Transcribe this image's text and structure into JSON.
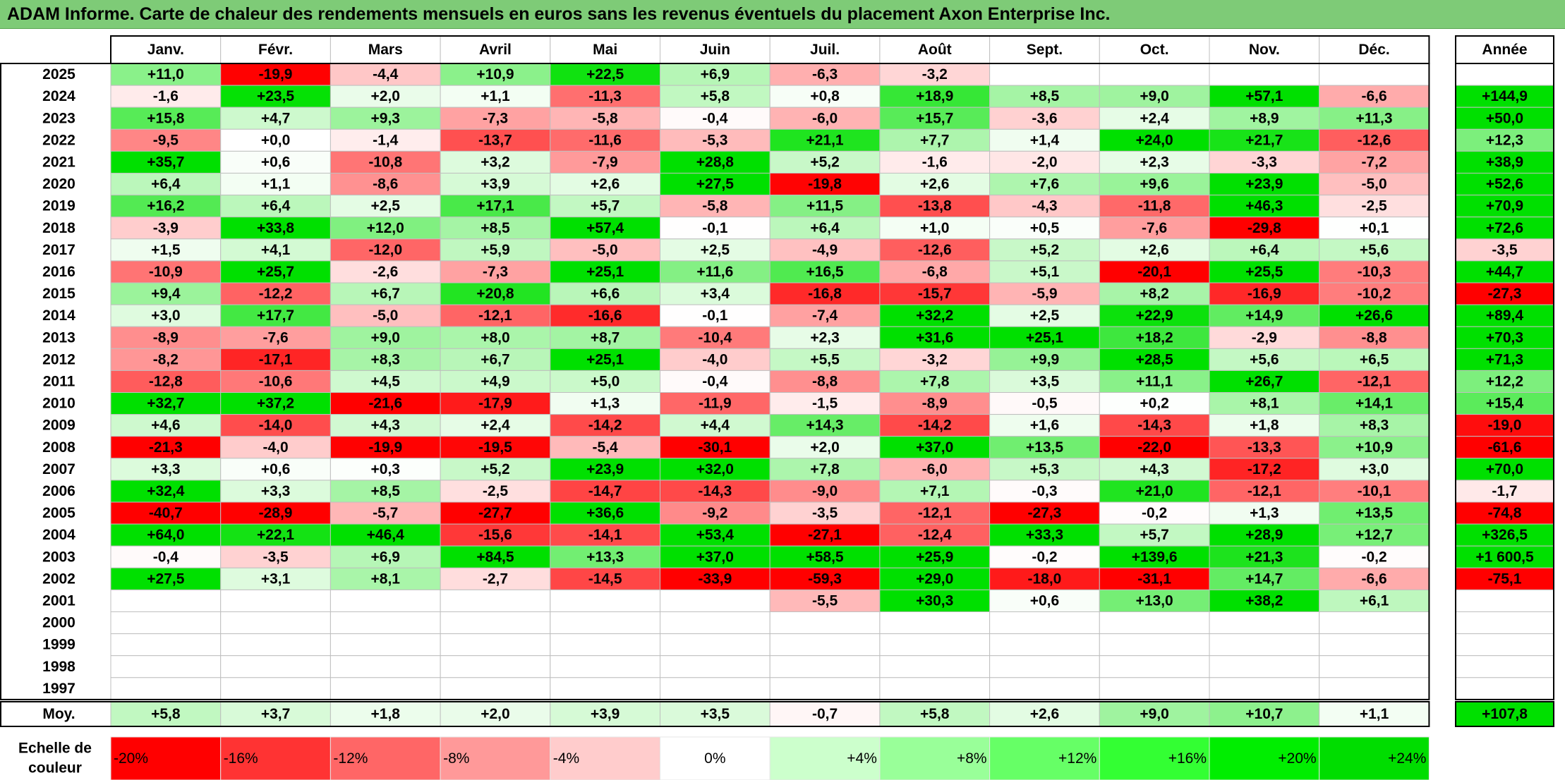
{
  "title": "ADAM Informe. Carte de chaleur des rendements mensuels en euros sans les revenus éventuels du placement Axon Enterprise Inc.",
  "chart_data": {
    "type": "heatmap",
    "title": "ADAM Informe. Carte de chaleur des rendements mensuels en euros sans les revenus éventuels du placement Axon Enterprise Inc.",
    "months": [
      "Janv.",
      "Févr.",
      "Mars",
      "Avril",
      "Mai",
      "Juin",
      "Juil.",
      "Août",
      "Sept.",
      "Oct.",
      "Nov.",
      "Déc."
    ],
    "year_column_label": "Année",
    "rows": [
      {
        "year": "2025",
        "values": [
          11.0,
          -19.9,
          -4.4,
          10.9,
          22.5,
          6.9,
          -6.3,
          -3.2,
          null,
          null,
          null,
          null
        ],
        "labels": [
          "+11,0",
          "-19,9",
          "-4,4",
          "+10,9",
          "+22,5",
          "+6,9",
          "-6,3",
          "-3,2",
          "",
          "",
          "",
          ""
        ],
        "annual": null,
        "annual_label": ""
      },
      {
        "year": "2024",
        "values": [
          -1.6,
          23.5,
          2.0,
          1.1,
          -11.3,
          5.8,
          0.8,
          18.9,
          8.5,
          9.0,
          57.1,
          -6.6
        ],
        "labels": [
          "-1,6",
          "+23,5",
          "+2,0",
          "+1,1",
          "-11,3",
          "+5,8",
          "+0,8",
          "+18,9",
          "+8,5",
          "+9,0",
          "+57,1",
          "-6,6"
        ],
        "annual": 144.9,
        "annual_label": "+144,9"
      },
      {
        "year": "2023",
        "values": [
          15.8,
          4.7,
          9.3,
          -7.3,
          -5.8,
          -0.4,
          -6.0,
          15.7,
          -3.6,
          2.4,
          8.9,
          11.3
        ],
        "labels": [
          "+15,8",
          "+4,7",
          "+9,3",
          "-7,3",
          "-5,8",
          "-0,4",
          "-6,0",
          "+15,7",
          "-3,6",
          "+2,4",
          "+8,9",
          "+11,3"
        ],
        "annual": 50.0,
        "annual_label": "+50,0"
      },
      {
        "year": "2022",
        "values": [
          -9.5,
          0.0,
          -1.4,
          -13.7,
          -11.6,
          -5.3,
          21.1,
          7.7,
          1.4,
          24.0,
          21.7,
          -12.6
        ],
        "labels": [
          "-9,5",
          "+0,0",
          "-1,4",
          "-13,7",
          "-11,6",
          "-5,3",
          "+21,1",
          "+7,7",
          "+1,4",
          "+24,0",
          "+21,7",
          "-12,6"
        ],
        "annual": 12.3,
        "annual_label": "+12,3"
      },
      {
        "year": "2021",
        "values": [
          35.7,
          0.6,
          -10.8,
          3.2,
          -7.9,
          28.8,
          5.2,
          -1.6,
          -2.0,
          2.3,
          -3.3,
          -7.2
        ],
        "labels": [
          "+35,7",
          "+0,6",
          "-10,8",
          "+3,2",
          "-7,9",
          "+28,8",
          "+5,2",
          "-1,6",
          "-2,0",
          "+2,3",
          "-3,3",
          "-7,2"
        ],
        "annual": 38.9,
        "annual_label": "+38,9"
      },
      {
        "year": "2020",
        "values": [
          6.4,
          1.1,
          -8.6,
          3.9,
          2.6,
          27.5,
          -19.8,
          2.6,
          7.6,
          9.6,
          23.9,
          -5.0
        ],
        "labels": [
          "+6,4",
          "+1,1",
          "-8,6",
          "+3,9",
          "+2,6",
          "+27,5",
          "-19,8",
          "+2,6",
          "+7,6",
          "+9,6",
          "+23,9",
          "-5,0"
        ],
        "annual": 52.6,
        "annual_label": "+52,6"
      },
      {
        "year": "2019",
        "values": [
          16.2,
          6.4,
          2.5,
          17.1,
          5.7,
          -5.8,
          11.5,
          -13.8,
          -4.3,
          -11.8,
          46.3,
          -2.5
        ],
        "labels": [
          "+16,2",
          "+6,4",
          "+2,5",
          "+17,1",
          "+5,7",
          "-5,8",
          "+11,5",
          "-13,8",
          "-4,3",
          "-11,8",
          "+46,3",
          "-2,5"
        ],
        "annual": 70.9,
        "annual_label": "+70,9"
      },
      {
        "year": "2018",
        "values": [
          -3.9,
          33.8,
          12.0,
          8.5,
          57.4,
          -0.1,
          6.4,
          1.0,
          0.5,
          -7.6,
          -29.8,
          0.1
        ],
        "labels": [
          "-3,9",
          "+33,8",
          "+12,0",
          "+8,5",
          "+57,4",
          "-0,1",
          "+6,4",
          "+1,0",
          "+0,5",
          "-7,6",
          "-29,8",
          "+0,1"
        ],
        "annual": 72.6,
        "annual_label": "+72,6"
      },
      {
        "year": "2017",
        "values": [
          1.5,
          4.1,
          -12.0,
          5.9,
          -5.0,
          2.5,
          -4.9,
          -12.6,
          5.2,
          2.6,
          6.4,
          5.6
        ],
        "labels": [
          "+1,5",
          "+4,1",
          "-12,0",
          "+5,9",
          "-5,0",
          "+2,5",
          "-4,9",
          "-12,6",
          "+5,2",
          "+2,6",
          "+6,4",
          "+5,6"
        ],
        "annual": -3.5,
        "annual_label": "-3,5"
      },
      {
        "year": "2016",
        "values": [
          -10.9,
          25.7,
          -2.6,
          -7.3,
          25.1,
          11.6,
          16.5,
          -6.8,
          5.1,
          -20.1,
          25.5,
          -10.3
        ],
        "labels": [
          "-10,9",
          "+25,7",
          "-2,6",
          "-7,3",
          "+25,1",
          "+11,6",
          "+16,5",
          "-6,8",
          "+5,1",
          "-20,1",
          "+25,5",
          "-10,3"
        ],
        "annual": 44.7,
        "annual_label": "+44,7"
      },
      {
        "year": "2015",
        "values": [
          9.4,
          -12.2,
          6.7,
          20.8,
          6.6,
          3.4,
          -16.8,
          -15.7,
          -5.9,
          8.2,
          -16.9,
          -10.2
        ],
        "labels": [
          "+9,4",
          "-12,2",
          "+6,7",
          "+20,8",
          "+6,6",
          "+3,4",
          "-16,8",
          "-15,7",
          "-5,9",
          "+8,2",
          "-16,9",
          "-10,2"
        ],
        "annual": -27.3,
        "annual_label": "-27,3"
      },
      {
        "year": "2014",
        "values": [
          3.0,
          17.7,
          -5.0,
          -12.1,
          -16.6,
          -0.1,
          -7.4,
          32.2,
          2.5,
          22.9,
          14.9,
          26.6
        ],
        "labels": [
          "+3,0",
          "+17,7",
          "-5,0",
          "-12,1",
          "-16,6",
          "-0,1",
          "-7,4",
          "+32,2",
          "+2,5",
          "+22,9",
          "+14,9",
          "+26,6"
        ],
        "annual": 89.4,
        "annual_label": "+89,4"
      },
      {
        "year": "2013",
        "values": [
          -8.9,
          -7.6,
          9.0,
          8.0,
          8.7,
          -10.4,
          2.3,
          31.6,
          25.1,
          18.2,
          -2.9,
          -8.8
        ],
        "labels": [
          "-8,9",
          "-7,6",
          "+9,0",
          "+8,0",
          "+8,7",
          "-10,4",
          "+2,3",
          "+31,6",
          "+25,1",
          "+18,2",
          "-2,9",
          "-8,8"
        ],
        "annual": 70.3,
        "annual_label": "+70,3"
      },
      {
        "year": "2012",
        "values": [
          -8.2,
          -17.1,
          8.3,
          6.7,
          25.1,
          -4.0,
          5.5,
          -3.2,
          9.9,
          28.5,
          5.6,
          6.5
        ],
        "labels": [
          "-8,2",
          "-17,1",
          "+8,3",
          "+6,7",
          "+25,1",
          "-4,0",
          "+5,5",
          "-3,2",
          "+9,9",
          "+28,5",
          "+5,6",
          "+6,5"
        ],
        "annual": 71.3,
        "annual_label": "+71,3"
      },
      {
        "year": "2011",
        "values": [
          -12.8,
          -10.6,
          4.5,
          4.9,
          5.0,
          -0.4,
          -8.8,
          7.8,
          3.5,
          11.1,
          26.7,
          -12.1
        ],
        "labels": [
          "-12,8",
          "-10,6",
          "+4,5",
          "+4,9",
          "+5,0",
          "-0,4",
          "-8,8",
          "+7,8",
          "+3,5",
          "+11,1",
          "+26,7",
          "-12,1"
        ],
        "annual": 12.2,
        "annual_label": "+12,2"
      },
      {
        "year": "2010",
        "values": [
          32.7,
          37.2,
          -21.6,
          -17.9,
          1.3,
          -11.9,
          -1.5,
          -8.9,
          -0.5,
          0.2,
          8.1,
          14.1
        ],
        "labels": [
          "+32,7",
          "+37,2",
          "-21,6",
          "-17,9",
          "+1,3",
          "-11,9",
          "-1,5",
          "-8,9",
          "-0,5",
          "+0,2",
          "+8,1",
          "+14,1"
        ],
        "annual": 15.4,
        "annual_label": "+15,4"
      },
      {
        "year": "2009",
        "values": [
          4.6,
          -14.0,
          4.3,
          2.4,
          -14.2,
          4.4,
          14.3,
          -14.2,
          1.6,
          -14.3,
          1.8,
          8.3
        ],
        "labels": [
          "+4,6",
          "-14,0",
          "+4,3",
          "+2,4",
          "-14,2",
          "+4,4",
          "+14,3",
          "-14,2",
          "+1,6",
          "-14,3",
          "+1,8",
          "+8,3"
        ],
        "annual": -19.0,
        "annual_label": "-19,0"
      },
      {
        "year": "2008",
        "values": [
          -21.3,
          -4.0,
          -19.9,
          -19.5,
          -5.4,
          -30.1,
          2.0,
          37.0,
          13.5,
          -22.0,
          -13.3,
          10.9
        ],
        "labels": [
          "-21,3",
          "-4,0",
          "-19,9",
          "-19,5",
          "-5,4",
          "-30,1",
          "+2,0",
          "+37,0",
          "+13,5",
          "-22,0",
          "-13,3",
          "+10,9"
        ],
        "annual": -61.6,
        "annual_label": "-61,6"
      },
      {
        "year": "2007",
        "values": [
          3.3,
          0.6,
          0.3,
          5.2,
          23.9,
          32.0,
          7.8,
          -6.0,
          5.3,
          4.3,
          -17.2,
          3.0
        ],
        "labels": [
          "+3,3",
          "+0,6",
          "+0,3",
          "+5,2",
          "+23,9",
          "+32,0",
          "+7,8",
          "-6,0",
          "+5,3",
          "+4,3",
          "-17,2",
          "+3,0"
        ],
        "annual": 70.0,
        "annual_label": "+70,0"
      },
      {
        "year": "2006",
        "values": [
          32.4,
          3.3,
          8.5,
          -2.5,
          -14.7,
          -14.3,
          -9.0,
          7.1,
          -0.3,
          21.0,
          -12.1,
          -10.1
        ],
        "labels": [
          "+32,4",
          "+3,3",
          "+8,5",
          "-2,5",
          "-14,7",
          "-14,3",
          "-9,0",
          "+7,1",
          "-0,3",
          "+21,0",
          "-12,1",
          "-10,1"
        ],
        "annual": -1.7,
        "annual_label": "-1,7"
      },
      {
        "year": "2005",
        "values": [
          -40.7,
          -28.9,
          -5.7,
          -27.7,
          36.6,
          -9.2,
          -3.5,
          -12.1,
          -27.3,
          -0.2,
          1.3,
          13.5
        ],
        "labels": [
          "-40,7",
          "-28,9",
          "-5,7",
          "-27,7",
          "+36,6",
          "-9,2",
          "-3,5",
          "-12,1",
          "-27,3",
          "-0,2",
          "+1,3",
          "+13,5"
        ],
        "annual": -74.8,
        "annual_label": "-74,8"
      },
      {
        "year": "2004",
        "values": [
          64.0,
          22.1,
          46.4,
          -15.6,
          -14.1,
          53.4,
          -27.1,
          -12.4,
          33.3,
          5.7,
          28.9,
          12.7
        ],
        "labels": [
          "+64,0",
          "+22,1",
          "+46,4",
          "-15,6",
          "-14,1",
          "+53,4",
          "-27,1",
          "-12,4",
          "+33,3",
          "+5,7",
          "+28,9",
          "+12,7"
        ],
        "annual": 326.5,
        "annual_label": "+326,5"
      },
      {
        "year": "2003",
        "values": [
          -0.4,
          -3.5,
          6.9,
          84.5,
          13.3,
          37.0,
          58.5,
          25.9,
          -0.2,
          139.6,
          21.3,
          -0.2
        ],
        "labels": [
          "-0,4",
          "-3,5",
          "+6,9",
          "+84,5",
          "+13,3",
          "+37,0",
          "+58,5",
          "+25,9",
          "-0,2",
          "+139,6",
          "+21,3",
          "-0,2"
        ],
        "annual": 1600.5,
        "annual_label": "+1 600,5"
      },
      {
        "year": "2002",
        "values": [
          27.5,
          3.1,
          8.1,
          -2.7,
          -14.5,
          -33.9,
          -59.3,
          29.0,
          -18.0,
          -31.1,
          14.7,
          -6.6
        ],
        "labels": [
          "+27,5",
          "+3,1",
          "+8,1",
          "-2,7",
          "-14,5",
          "-33,9",
          "-59,3",
          "+29,0",
          "-18,0",
          "-31,1",
          "+14,7",
          "-6,6"
        ],
        "annual": -75.1,
        "annual_label": "-75,1"
      },
      {
        "year": "2001",
        "values": [
          null,
          null,
          null,
          null,
          null,
          null,
          -5.5,
          30.3,
          0.6,
          13.0,
          38.2,
          6.1
        ],
        "labels": [
          "",
          "",
          "",
          "",
          "",
          "",
          "-5,5",
          "+30,3",
          "+0,6",
          "+13,0",
          "+38,2",
          "+6,1"
        ],
        "annual": null,
        "annual_label": ""
      },
      {
        "year": "2000",
        "values": [
          null,
          null,
          null,
          null,
          null,
          null,
          null,
          null,
          null,
          null,
          null,
          null
        ],
        "labels": [
          "",
          "",
          "",
          "",
          "",
          "",
          "",
          "",
          "",
          "",
          "",
          ""
        ],
        "annual": null,
        "annual_label": ""
      },
      {
        "year": "1999",
        "values": [
          null,
          null,
          null,
          null,
          null,
          null,
          null,
          null,
          null,
          null,
          null,
          null
        ],
        "labels": [
          "",
          "",
          "",
          "",
          "",
          "",
          "",
          "",
          "",
          "",
          "",
          ""
        ],
        "annual": null,
        "annual_label": ""
      },
      {
        "year": "1998",
        "values": [
          null,
          null,
          null,
          null,
          null,
          null,
          null,
          null,
          null,
          null,
          null,
          null
        ],
        "labels": [
          "",
          "",
          "",
          "",
          "",
          "",
          "",
          "",
          "",
          "",
          "",
          ""
        ],
        "annual": null,
        "annual_label": ""
      },
      {
        "year": "1997",
        "values": [
          null,
          null,
          null,
          null,
          null,
          null,
          null,
          null,
          null,
          null,
          null,
          null
        ],
        "labels": [
          "",
          "",
          "",
          "",
          "",
          "",
          "",
          "",
          "",
          "",
          "",
          ""
        ],
        "annual": null,
        "annual_label": ""
      }
    ],
    "average": {
      "label": "Moy.",
      "values": [
        5.8,
        3.7,
        1.8,
        2.0,
        3.9,
        3.5,
        -0.7,
        5.8,
        2.6,
        9.0,
        10.7,
        1.1
      ],
      "labels": [
        "+5,8",
        "+3,7",
        "+1,8",
        "+2,0",
        "+3,9",
        "+3,5",
        "-0,7",
        "+5,8",
        "+2,6",
        "+9,0",
        "+10,7",
        "+1,1"
      ],
      "annual": 107.8,
      "annual_label": "+107,8"
    },
    "color_scale": {
      "label_line1": "Echelle de",
      "label_line2": "couleur",
      "steps": [
        {
          "value": -20,
          "label": "-20%",
          "color": "#ff0000"
        },
        {
          "value": -16,
          "label": "-16%",
          "color": "#ff3333"
        },
        {
          "value": -12,
          "label": "-12%",
          "color": "#ff6666"
        },
        {
          "value": -8,
          "label": "-8%",
          "color": "#ff9999"
        },
        {
          "value": -4,
          "label": "-4%",
          "color": "#ffcccc"
        },
        {
          "value": 0,
          "label": "0%",
          "color": "#ffffff"
        },
        {
          "value": 4,
          "label": "+4%",
          "color": "#ccffcc"
        },
        {
          "value": 8,
          "label": "+8%",
          "color": "#99ff99"
        },
        {
          "value": 12,
          "label": "+12%",
          "color": "#66ff66"
        },
        {
          "value": 16,
          "label": "+16%",
          "color": "#33ff33"
        },
        {
          "value": 20,
          "label": "+20%",
          "color": "#00ee00"
        },
        {
          "value": 24,
          "label": "+24%",
          "color": "#00dd00"
        }
      ]
    }
  },
  "colors": {
    "title_bar": "#7ecb77",
    "negative_max": "#ff0000",
    "positive_max": "#00e000",
    "neutral": "#ffffff",
    "grid_line": "#bfbfbf",
    "border": "#000000"
  }
}
